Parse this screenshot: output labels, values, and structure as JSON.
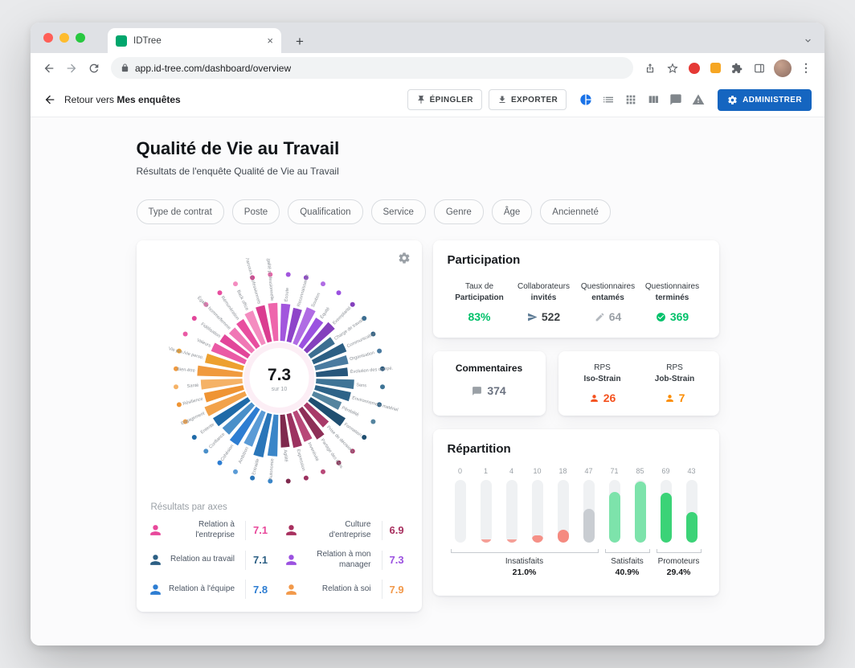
{
  "browser": {
    "tab_title": "IDTree",
    "url": "app.id-tree.com/dashboard/overview"
  },
  "app_header": {
    "back_prefix": "Retour vers",
    "back_bold": "Mes enquêtes",
    "pin_label": "ÉPINGLER",
    "export_label": "EXPORTER",
    "admin_label": "ADMINISTRER",
    "view_icons": [
      {
        "name": "pie-chart-view-icon",
        "icon": "pie",
        "active": true
      },
      {
        "name": "list-view-icon",
        "icon": "list",
        "active": false
      },
      {
        "name": "grid-view-icon",
        "icon": "grid",
        "active": false
      },
      {
        "name": "columns-view-icon",
        "icon": "columns",
        "active": false
      },
      {
        "name": "comments-view-icon",
        "icon": "chat",
        "active": false
      },
      {
        "name": "alerts-view-icon",
        "icon": "warning",
        "active": false
      }
    ]
  },
  "page": {
    "title": "Qualité de Vie au Travail",
    "subtitle": "Résultats de l'enquête Qualité de Vie au Travail",
    "filters": [
      "Type de contrat",
      "Poste",
      "Qualification",
      "Service",
      "Genre",
      "Âge",
      "Ancienneté"
    ]
  },
  "participation": {
    "title": "Participation",
    "metrics": [
      {
        "line1": "Taux de",
        "line2": "Participation",
        "value": "83%",
        "value_color": "#00c16a",
        "icon": null,
        "icon_color": null
      },
      {
        "line1": "Collaborateurs",
        "line2": "invités",
        "value": "522",
        "value_color": "#3c4043",
        "icon": "send",
        "icon_color": "#5c7a94"
      },
      {
        "line1": "Questionnaires",
        "line2": "entamés",
        "value": "64",
        "value_color": "#9aa0a6",
        "icon": "pencil",
        "icon_color": "#b4b9bf"
      },
      {
        "line1": "Questionnaires",
        "line2": "terminés",
        "value": "369",
        "value_color": "#00c16a",
        "icon": "check",
        "icon_color": "#00c16a"
      }
    ]
  },
  "comments": {
    "title": "Commentaires",
    "value": "374"
  },
  "rps": {
    "items": [
      {
        "line1": "RPS",
        "line2": "Iso-Strain",
        "value": "26",
        "color": "#f4511e"
      },
      {
        "line1": "RPS",
        "line2": "Job-Strain",
        "value": "7",
        "color": "#fb8c00"
      }
    ]
  },
  "chart_data": [
    {
      "type": "radial-bar",
      "center_score": "7.3",
      "center_label": "sur 10",
      "score_max": 10,
      "axes_title": "Résultats par axes",
      "axes": [
        {
          "label": "Relation à l'entreprise",
          "value": 7.1,
          "color": "#e8489b"
        },
        {
          "label": "Culture d'entreprise",
          "value": 6.9,
          "color": "#a8305f"
        },
        {
          "label": "Relation au travail",
          "value": 7.1,
          "color": "#2c5f84"
        },
        {
          "label": "Relation à mon manager",
          "value": 7.3,
          "color": "#9b51e0"
        },
        {
          "label": "Relation à l'équipe",
          "value": 7.8,
          "color": "#2d7dd2"
        },
        {
          "label": "Relation à soi",
          "value": 7.9,
          "color": "#f2994a"
        }
      ],
      "segments": [
        {
          "axis": "Relation à mon manager",
          "label": "Écoute",
          "value": 7.4,
          "color": "#a256dd"
        },
        {
          "axis": "Relation à mon manager",
          "label": "Reconnaissance",
          "value": 7.1,
          "color": "#8e44c9"
        },
        {
          "axis": "Relation à mon manager",
          "label": "Soutien",
          "value": 7.6,
          "color": "#b06ce4"
        },
        {
          "axis": "Relation à mon manager",
          "label": "Équité",
          "value": 7.0,
          "color": "#9b51e0"
        },
        {
          "axis": "Relation à mon manager",
          "label": "Exemplarité",
          "value": 7.4,
          "color": "#8440bd"
        },
        {
          "axis": "Relation au travail",
          "label": "Charge de travail",
          "value": 6.4,
          "color": "#3c6e91"
        },
        {
          "axis": "Relation au travail",
          "label": "Communication",
          "value": 7.2,
          "color": "#2c5f84"
        },
        {
          "axis": "Relation au travail",
          "label": "Organisation",
          "value": 7.0,
          "color": "#4a7ba0"
        },
        {
          "axis": "Relation au travail",
          "label": "Évolution des compé.",
          "value": 6.8,
          "color": "#27567b"
        },
        {
          "axis": "Relation au travail",
          "label": "Sens",
          "value": 7.5,
          "color": "#3f7496"
        },
        {
          "axis": "Relation au travail",
          "label": "Environnement matériel",
          "value": 7.3,
          "color": "#2e6388"
        },
        {
          "axis": "Relation au travail",
          "label": "Pénibilité",
          "value": 6.6,
          "color": "#54849f"
        },
        {
          "axis": "Relation au travail",
          "label": "Formation",
          "value": 7.8,
          "color": "#1f4e70"
        },
        {
          "axis": "Culture d'entreprise",
          "label": "Prise de décisions",
          "value": 6.5,
          "color": "#a83a68"
        },
        {
          "axis": "Culture d'entreprise",
          "label": "Partage des infos",
          "value": 7.2,
          "color": "#8e2f57"
        },
        {
          "axis": "Culture d'entreprise",
          "label": "Inventivité",
          "value": 6.8,
          "color": "#b84878"
        },
        {
          "axis": "Culture d'entreprise",
          "label": "Expression",
          "value": 7.1,
          "color": "#9c3260"
        },
        {
          "axis": "Culture d'entreprise",
          "label": "Agilité",
          "value": 6.9,
          "color": "#7f2a4e"
        },
        {
          "axis": "Relation à l'équipe",
          "label": "Autonomie",
          "value": 7.9,
          "color": "#3b86c8"
        },
        {
          "axis": "Relation à l'équipe",
          "label": "Entraide",
          "value": 8.2,
          "color": "#2a76b9"
        },
        {
          "axis": "Relation à l'équipe",
          "label": "Ambition",
          "value": 7.4,
          "color": "#5a9bd6"
        },
        {
          "axis": "Relation à l'équipe",
          "label": "Cohésion",
          "value": 8.0,
          "color": "#2d7dd2"
        },
        {
          "axis": "Relation à l'équipe",
          "label": "Confiance",
          "value": 7.6,
          "color": "#4a8fc9"
        },
        {
          "axis": "Relation à l'équipe",
          "label": "Entente",
          "value": 7.8,
          "color": "#1f6aa8"
        },
        {
          "axis": "Relation à soi",
          "label": "Engagement",
          "value": 8.1,
          "color": "#f2a24a"
        },
        {
          "axis": "Relation à soi",
          "label": "Résilience",
          "value": 7.7,
          "color": "#ef9433"
        },
        {
          "axis": "Relation à soi",
          "label": "Santé",
          "value": 7.9,
          "color": "#f5b266"
        },
        {
          "axis": "Relation à soi",
          "label": "Bien-être",
          "value": 8.3,
          "color": "#f09a3e"
        },
        {
          "axis": "Relation à soi",
          "label": "Vie pro./vie perso.",
          "value": 7.6,
          "color": "#eda02f"
        },
        {
          "axis": "Relation à l'entreprise",
          "label": "Valeurs",
          "value": 7.3,
          "color": "#ea5aa5"
        },
        {
          "axis": "Relation à l'entreprise",
          "label": "Fidélisation",
          "value": 6.9,
          "color": "#e2469a"
        },
        {
          "axis": "Relation à l'entreprise",
          "label": "Égalité homme/femme",
          "value": 6.6,
          "color": "#f077b5"
        },
        {
          "axis": "Relation à l'entreprise",
          "label": "Rémunération",
          "value": 6.8,
          "color": "#e84e9f"
        },
        {
          "axis": "Relation à l'entreprise",
          "label": "Back office",
          "value": 7.2,
          "color": "#f48cc0"
        },
        {
          "axis": "Relation à l'entreprise",
          "label": "Parcours professionnels",
          "value": 7.4,
          "color": "#da3d90"
        },
        {
          "axis": "Relation à l'entreprise",
          "label": "Égalité professionnelle",
          "value": 7.5,
          "color": "#ee66ac"
        }
      ]
    },
    {
      "type": "bar",
      "title": "Répartition",
      "values": [
        0,
        1,
        4,
        10,
        18,
        47,
        71,
        85,
        69,
        43
      ],
      "bar_colors": [
        "#f59f97",
        "#f59f97",
        "#f59f97",
        "#f59087",
        "#f58a80",
        "#c9cdd2",
        "#7de3ab",
        "#7de3ab",
        "#3bd377",
        "#3bd377"
      ],
      "track_color": "#eff1f3",
      "ylim": [
        0,
        85
      ],
      "groups": [
        {
          "label": "Insatisfaits",
          "pct": "21.0%",
          "from": 0,
          "to": 5
        },
        {
          "label": "Satisfaits",
          "pct": "40.9%",
          "from": 6,
          "to": 7
        },
        {
          "label": "Promoteurs",
          "pct": "29.4%",
          "from": 8,
          "to": 9
        }
      ]
    }
  ]
}
